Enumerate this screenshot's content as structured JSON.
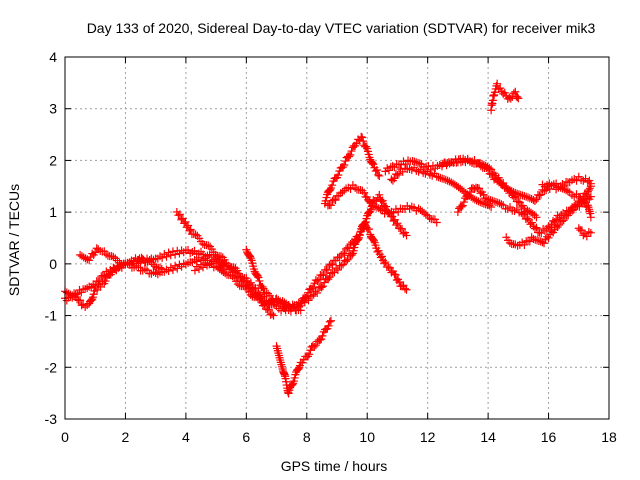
{
  "chart_data": {
    "type": "scatter",
    "title": "Day 133 of 2020, Sidereal Day-to-day VTEC variation (SDTVAR) for receiver mik3",
    "xlabel": "GPS time / hours",
    "ylabel": "SDTVAR / TECUs",
    "xlim": [
      0,
      18
    ],
    "ylim": [
      -3,
      4
    ],
    "xticks": [
      "0",
      "2",
      "4",
      "6",
      "8",
      "10",
      "12",
      "14",
      "16",
      "18"
    ],
    "yticks": [
      "-3",
      "-2",
      "-1",
      "0",
      "1",
      "2",
      "3",
      "4"
    ],
    "grid": true,
    "marker": "+",
    "series": [
      {
        "name": "SDTVAR",
        "color": "#ff0000",
        "tracks": [
          [
            [
              0.0,
              -0.5
            ],
            [
              0.3,
              -0.6
            ],
            [
              0.6,
              -0.8
            ],
            [
              0.8,
              -0.8
            ],
            [
              1.0,
              -0.5
            ],
            [
              1.3,
              -0.35
            ],
            [
              1.6,
              -0.1
            ],
            [
              2.0,
              0.0
            ],
            [
              2.5,
              -0.1
            ],
            [
              3.0,
              -0.2
            ],
            [
              3.5,
              -0.1
            ],
            [
              4.0,
              0.0
            ],
            [
              4.5,
              0.1
            ],
            [
              5.0,
              0.0
            ],
            [
              5.5,
              -0.1
            ],
            [
              6.0,
              -0.4
            ],
            [
              6.3,
              -0.6
            ],
            [
              6.6,
              -0.75
            ],
            [
              7.0,
              -0.7
            ],
            [
              7.3,
              -0.8
            ]
          ],
          [
            [
              0.0,
              -0.7
            ],
            [
              0.3,
              -0.6
            ],
            [
              0.6,
              -0.5
            ],
            [
              1.0,
              -0.4
            ],
            [
              1.3,
              -0.2
            ],
            [
              1.7,
              -0.1
            ],
            [
              2.0,
              0.0
            ],
            [
              2.5,
              0.05
            ],
            [
              3.0,
              0.1
            ],
            [
              3.5,
              0.2
            ],
            [
              4.0,
              0.25
            ],
            [
              4.5,
              0.2
            ],
            [
              5.0,
              0.1
            ],
            [
              5.3,
              0.0
            ]
          ],
          [
            [
              0.5,
              0.2
            ],
            [
              0.8,
              0.1
            ],
            [
              1.1,
              0.3
            ],
            [
              1.3,
              0.25
            ],
            [
              1.6,
              0.1
            ],
            [
              2.0,
              0.0
            ],
            [
              2.4,
              0.1
            ],
            [
              2.8,
              0.05
            ],
            [
              3.2,
              -0.1
            ]
          ],
          [
            [
              3.7,
              1.0
            ],
            [
              3.9,
              0.85
            ],
            [
              4.2,
              0.6
            ],
            [
              4.5,
              0.45
            ],
            [
              4.8,
              0.3
            ],
            [
              5.1,
              0.15
            ],
            [
              5.4,
              0.0
            ],
            [
              5.7,
              -0.15
            ],
            [
              6.0,
              -0.3
            ],
            [
              6.3,
              -0.5
            ],
            [
              6.6,
              -0.7
            ],
            [
              7.0,
              -0.85
            ],
            [
              7.3,
              -0.9
            ]
          ],
          [
            [
              4.3,
              -0.1
            ],
            [
              4.7,
              0.0
            ],
            [
              5.0,
              -0.05
            ],
            [
              5.3,
              -0.15
            ],
            [
              5.6,
              -0.3
            ],
            [
              5.9,
              -0.45
            ],
            [
              6.2,
              -0.6
            ],
            [
              6.5,
              -0.75
            ],
            [
              6.8,
              -0.95
            ],
            [
              6.9,
              -1.0
            ]
          ],
          [
            [
              6.0,
              0.3
            ],
            [
              6.2,
              0.0
            ],
            [
              6.4,
              -0.3
            ],
            [
              6.6,
              -0.55
            ],
            [
              6.9,
              -0.7
            ],
            [
              7.2,
              -0.75
            ],
            [
              7.5,
              -0.85
            ],
            [
              7.8,
              -0.9
            ]
          ],
          [
            [
              7.4,
              -0.9
            ],
            [
              7.7,
              -0.85
            ],
            [
              8.0,
              -0.6
            ],
            [
              8.3,
              -0.35
            ],
            [
              8.6,
              -0.15
            ],
            [
              8.9,
              0.05
            ],
            [
              9.2,
              0.2
            ],
            [
              9.5,
              0.4
            ],
            [
              9.8,
              0.6
            ],
            [
              10.0,
              0.9
            ],
            [
              10.2,
              1.2
            ],
            [
              10.4,
              1.3
            ],
            [
              10.7,
              1.0
            ],
            [
              11.0,
              0.75
            ],
            [
              11.3,
              0.55
            ]
          ],
          [
            [
              7.2,
              -0.85
            ],
            [
              7.6,
              -0.8
            ],
            [
              8.0,
              -0.7
            ],
            [
              8.4,
              -0.5
            ],
            [
              8.8,
              -0.2
            ],
            [
              9.2,
              0.0
            ],
            [
              9.5,
              0.2
            ],
            [
              9.7,
              0.5
            ],
            [
              9.9,
              0.8
            ],
            [
              10.1,
              0.6
            ],
            [
              10.3,
              0.3
            ],
            [
              10.6,
              0.0
            ],
            [
              10.9,
              -0.2
            ],
            [
              11.1,
              -0.4
            ],
            [
              11.3,
              -0.5
            ]
          ],
          [
            [
              7.0,
              -1.6
            ],
            [
              7.2,
              -2.0
            ],
            [
              7.4,
              -2.5
            ],
            [
              7.6,
              -2.2
            ],
            [
              7.8,
              -1.9
            ],
            [
              8.0,
              -1.8
            ],
            [
              8.2,
              -1.6
            ],
            [
              8.4,
              -1.5
            ],
            [
              8.6,
              -1.3
            ],
            [
              8.8,
              -1.1
            ]
          ],
          [
            [
              8.6,
              1.2
            ],
            [
              8.8,
              1.5
            ],
            [
              9.0,
              1.7
            ],
            [
              9.2,
              1.9
            ],
            [
              9.4,
              2.1
            ],
            [
              9.6,
              2.3
            ],
            [
              9.8,
              2.45
            ],
            [
              10.0,
              2.2
            ],
            [
              10.2,
              1.9
            ],
            [
              10.4,
              1.7
            ]
          ],
          [
            [
              8.7,
              1.1
            ],
            [
              9.0,
              1.3
            ],
            [
              9.3,
              1.45
            ],
            [
              9.6,
              1.5
            ],
            [
              9.9,
              1.35
            ],
            [
              10.2,
              1.1
            ],
            [
              10.5,
              1.0
            ],
            [
              10.8,
              1.0
            ],
            [
              11.1,
              1.05
            ],
            [
              11.4,
              1.1
            ],
            [
              11.7,
              1.05
            ],
            [
              12.0,
              0.95
            ],
            [
              12.3,
              0.8
            ]
          ],
          [
            [
              10.6,
              1.8
            ],
            [
              10.9,
              1.9
            ],
            [
              11.2,
              1.95
            ],
            [
              11.5,
              2.0
            ],
            [
              11.8,
              1.9
            ],
            [
              12.1,
              1.85
            ],
            [
              12.4,
              1.9
            ],
            [
              12.7,
              1.95
            ],
            [
              13.0,
              2.0
            ],
            [
              13.4,
              2.0
            ],
            [
              13.8,
              1.9
            ],
            [
              14.1,
              1.8
            ],
            [
              14.4,
              1.6
            ],
            [
              14.7,
              1.4
            ],
            [
              15.0,
              1.2
            ],
            [
              15.3,
              1.0
            ],
            [
              15.6,
              0.9
            ]
          ],
          [
            [
              10.8,
              1.6
            ],
            [
              11.1,
              1.8
            ],
            [
              11.4,
              1.85
            ],
            [
              11.7,
              1.8
            ],
            [
              12.0,
              1.75
            ],
            [
              12.3,
              1.7
            ],
            [
              12.6,
              1.6
            ],
            [
              12.9,
              1.5
            ],
            [
              13.2,
              1.4
            ],
            [
              13.5,
              1.3
            ],
            [
              13.8,
              1.2
            ],
            [
              14.1,
              1.1
            ]
          ],
          [
            [
              12.5,
              1.95
            ],
            [
              12.8,
              1.95
            ],
            [
              13.1,
              2.0
            ],
            [
              13.4,
              2.0
            ],
            [
              13.7,
              1.95
            ],
            [
              14.0,
              1.8
            ],
            [
              14.3,
              1.6
            ],
            [
              14.6,
              1.5
            ],
            [
              14.9,
              1.4
            ],
            [
              15.2,
              1.3
            ],
            [
              15.5,
              1.2
            ],
            [
              15.8,
              1.4
            ],
            [
              16.1,
              1.5
            ],
            [
              16.4,
              1.45
            ],
            [
              16.7,
              1.35
            ],
            [
              17.0,
              1.3
            ],
            [
              17.3,
              1.1
            ],
            [
              17.4,
              0.9
            ]
          ],
          [
            [
              13.0,
              1.0
            ],
            [
              13.2,
              1.2
            ],
            [
              13.4,
              1.4
            ],
            [
              13.6,
              1.5
            ],
            [
              13.9,
              1.3
            ],
            [
              14.2,
              1.2
            ],
            [
              14.5,
              1.1
            ],
            [
              14.8,
              1.05
            ],
            [
              15.1,
              1.0
            ],
            [
              15.4,
              0.8
            ],
            [
              15.7,
              0.6
            ],
            [
              16.0,
              0.7
            ],
            [
              16.3,
              0.9
            ],
            [
              16.6,
              1.0
            ],
            [
              16.9,
              1.1
            ],
            [
              17.2,
              1.2
            ],
            [
              17.4,
              1.3
            ]
          ],
          [
            [
              14.1,
              3.0
            ],
            [
              14.2,
              3.3
            ],
            [
              14.3,
              3.45
            ],
            [
              14.5,
              3.3
            ],
            [
              14.7,
              3.2
            ],
            [
              14.9,
              3.3
            ],
            [
              15.0,
              3.2
            ]
          ],
          [
            [
              14.6,
              0.5
            ],
            [
              14.9,
              0.35
            ],
            [
              15.2,
              0.4
            ],
            [
              15.5,
              0.5
            ],
            [
              15.8,
              0.4
            ],
            [
              16.1,
              0.6
            ],
            [
              16.4,
              0.8
            ],
            [
              16.7,
              1.0
            ],
            [
              17.0,
              1.2
            ],
            [
              17.3,
              1.4
            ],
            [
              17.4,
              1.5
            ]
          ],
          [
            [
              15.8,
              1.5
            ],
            [
              16.1,
              1.55
            ],
            [
              16.4,
              1.5
            ],
            [
              16.7,
              1.6
            ],
            [
              17.0,
              1.65
            ],
            [
              17.3,
              1.6
            ],
            [
              17.4,
              1.55
            ]
          ],
          [
            [
              17.0,
              0.7
            ],
            [
              17.2,
              0.55
            ],
            [
              17.4,
              0.6
            ]
          ]
        ]
      }
    ]
  }
}
